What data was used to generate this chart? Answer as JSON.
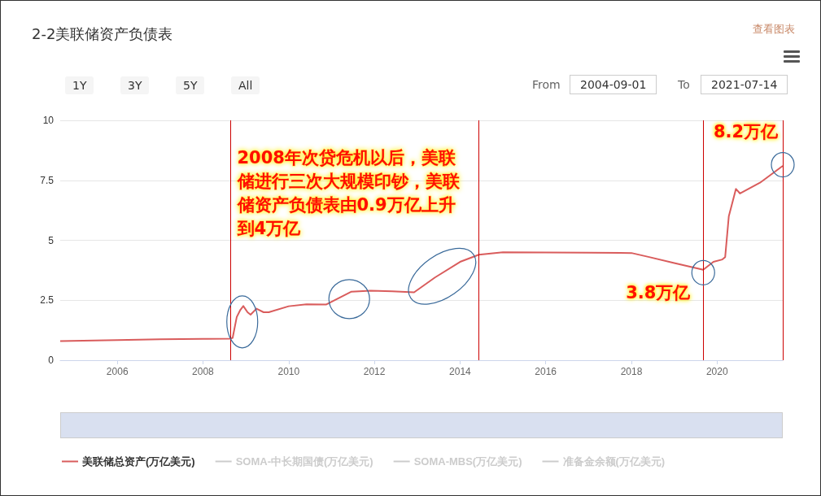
{
  "chart_data": {
    "type": "line",
    "title": "2-2美联储资产负债表",
    "x": [
      "2004-09-01",
      "2006-01-01",
      "2007-01-01",
      "2008-01-01",
      "2008-08-20",
      "2008-09-10",
      "2008-10-15",
      "2008-11-15",
      "2008-12-10",
      "2009-01-15",
      "2009-02-10",
      "2009-04-01",
      "2009-06-01",
      "2009-07-15",
      "2010-01-01",
      "2010-06-01",
      "2010-11-15",
      "2011-06-20",
      "2011-12-01",
      "2012-06-01",
      "2012-12-05",
      "2013-06-01",
      "2014-01-01",
      "2014-06-10",
      "2015-01-01",
      "2016-01-01",
      "2017-01-01",
      "2018-01-01",
      "2018-06-01",
      "2019-01-01",
      "2019-09-05",
      "2019-12-01",
      "2020-02-15",
      "2020-03-10",
      "2020-04-10",
      "2020-06-10",
      "2020-07-15",
      "2021-01-01",
      "2021-07-14"
    ],
    "series": [
      {
        "name": "美联储总资产(万亿美元)",
        "color": "#d95c5c",
        "values": [
          0.8,
          0.84,
          0.87,
          0.89,
          0.9,
          0.93,
          1.8,
          2.1,
          2.26,
          2.0,
          1.9,
          2.15,
          2.0,
          2.0,
          2.25,
          2.33,
          2.32,
          2.86,
          2.9,
          2.87,
          2.83,
          3.45,
          4.1,
          4.4,
          4.5,
          4.49,
          4.48,
          4.47,
          4.3,
          4.05,
          3.77,
          4.1,
          4.2,
          4.3,
          6.0,
          7.14,
          6.95,
          7.4,
          8.1
        ]
      },
      {
        "name": "SOMA-中长期国债(万亿美元)",
        "color": "#cccccc",
        "values": [
          null,
          null,
          null,
          null,
          null,
          null,
          null,
          null,
          null,
          null,
          null,
          null,
          null,
          null,
          null,
          null,
          null,
          null,
          null,
          null,
          null,
          null,
          null,
          null,
          null,
          null,
          null,
          null,
          null,
          null,
          null,
          null,
          null,
          null,
          null,
          null,
          null,
          null,
          null
        ]
      },
      {
        "name": "SOMA-MBS(万亿美元)",
        "color": "#cccccc",
        "values": [
          null,
          null,
          null,
          null,
          null,
          null,
          null,
          null,
          null,
          null,
          null,
          null,
          null,
          null,
          null,
          null,
          null,
          null,
          null,
          null,
          null,
          null,
          null,
          null,
          null,
          null,
          null,
          null,
          null,
          null,
          null,
          null,
          null,
          null,
          null,
          null,
          null,
          null,
          null
        ]
      },
      {
        "name": "准备金余额(万亿美元)",
        "color": "#cccccc",
        "values": [
          null,
          null,
          null,
          null,
          null,
          null,
          null,
          null,
          null,
          null,
          null,
          null,
          null,
          null,
          null,
          null,
          null,
          null,
          null,
          null,
          null,
          null,
          null,
          null,
          null,
          null,
          null,
          null,
          null,
          null,
          null,
          null,
          null,
          null,
          null,
          null,
          null,
          null,
          null
        ]
      }
    ],
    "xlim": [
      "2004-09-01",
      "2021-07-14"
    ],
    "xticks": [
      {
        "value": "2006",
        "label": "2006"
      },
      {
        "value": "2008",
        "label": "2008"
      },
      {
        "value": "2010",
        "label": "2010"
      },
      {
        "value": "2012",
        "label": "2012"
      },
      {
        "value": "2014",
        "label": "2014"
      },
      {
        "value": "2016",
        "label": "2016"
      },
      {
        "value": "2018",
        "label": "2018"
      },
      {
        "value": "2020",
        "label": "2020"
      }
    ],
    "ylim": [
      0,
      10
    ],
    "yticks": [
      0,
      2.5,
      5,
      7.5,
      10
    ],
    "grid": "y",
    "legend": "bottom left",
    "marker": "none",
    "ref_lines": [
      {
        "axis": "x",
        "value": "2008-08-20",
        "color": "#cc0000"
      },
      {
        "axis": "x",
        "value": "2014-06-10",
        "color": "#cc0000"
      },
      {
        "axis": "x",
        "value": "2019-09-05",
        "color": "#cc0000"
      },
      {
        "axis": "x",
        "value": "2021-07-14",
        "color": "#cc0000"
      }
    ],
    "annotations": [
      "2008年次贷危机以后，美联储进行三次大规模印钞，美联储资产负债表由0.9万亿上升到4万亿",
      {
        "text": "3.8万亿",
        "x": "2019-09-05",
        "y": 3.77
      },
      {
        "text": "8.2万亿",
        "x": "2021-07-14",
        "y": 8.1
      },
      "查看图表",
      "1Y",
      "3Y",
      "5Y",
      "All",
      "From",
      "2004-09-01",
      "To",
      "2021-07-14"
    ]
  }
}
